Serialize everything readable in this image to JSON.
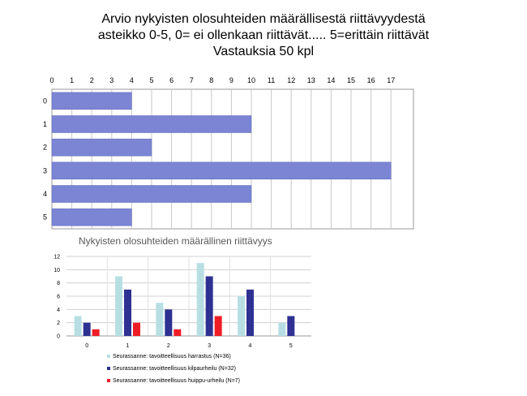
{
  "chart_data": [
    {
      "type": "bar",
      "orientation": "horizontal",
      "title_lines": [
        "Arvio nykyisten olosuhteiden määrällisestä riittävyydestä",
        "asteikko 0-5, 0= ei ollenkaan riittävät..... 5=erittäin riittävät",
        "Vastauksia 50 kpl"
      ],
      "categories": [
        "0",
        "1",
        "2",
        "3",
        "4",
        "5"
      ],
      "values": [
        4,
        10,
        5,
        17,
        10,
        4
      ],
      "xlim": [
        0,
        17
      ],
      "x_ticks": [
        "0",
        "1",
        "2",
        "3",
        "4",
        "5",
        "6",
        "7",
        "8",
        "9",
        "10",
        "11",
        "12",
        "13",
        "14",
        "15",
        "16",
        "17"
      ],
      "grid": true,
      "bar_color": "#7b85d4"
    },
    {
      "type": "bar",
      "orientation": "vertical",
      "title": "Nykyisten olosuhteiden määrällinen riittävyys",
      "categories": [
        "0",
        "1",
        "2",
        "3",
        "4",
        "5"
      ],
      "ylim": [
        0,
        12
      ],
      "y_ticks": [
        "0",
        "2",
        "4",
        "6",
        "8",
        "10",
        "12"
      ],
      "grid": true,
      "legend_position": "bottom",
      "series": [
        {
          "name": "Seurassanne: tavoitteellisuus harrastus (N=36)",
          "values": [
            3,
            9,
            5,
            11,
            6,
            2
          ],
          "color": "#b7dfe3"
        },
        {
          "name": "Seurassanne: tavoitteellisuus kilpaurheilu (N=32)",
          "values": [
            2,
            7,
            4,
            9,
            7,
            3
          ],
          "color": "#2e3192"
        },
        {
          "name": "Seurassanne: tavoitteellisuus huippu-urheilu (N=7)",
          "values": [
            1,
            2,
            1,
            3,
            0,
            0
          ],
          "color": "#ee1c25"
        }
      ]
    }
  ]
}
